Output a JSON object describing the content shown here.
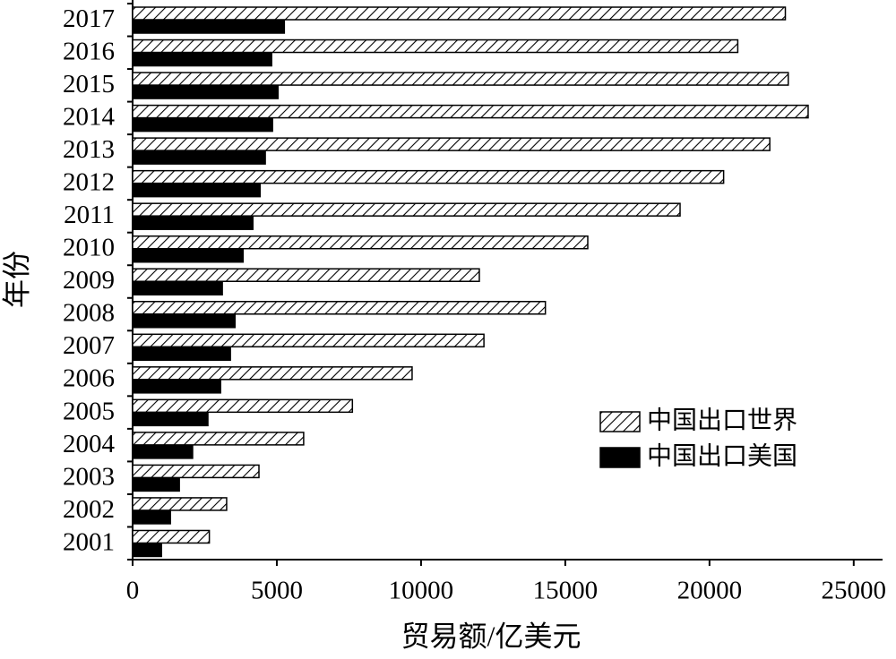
{
  "chart_data": {
    "type": "hbar",
    "x_label": "贸易额/亿美元",
    "y_label": "年份",
    "categories": [
      "2001",
      "2002",
      "2003",
      "2004",
      "2005",
      "2006",
      "2007",
      "2008",
      "2009",
      "2010",
      "2011",
      "2012",
      "2013",
      "2014",
      "2015",
      "2016",
      "2017"
    ],
    "series": [
      {
        "name": "中国出口世界",
        "color": "#000000",
        "pattern": "hatch",
        "values": [
          2660,
          3260,
          4380,
          5930,
          7620,
          9690,
          12180,
          14310,
          12020,
          15780,
          18980,
          20490,
          22090,
          23420,
          22730,
          20980,
          22630
        ]
      },
      {
        "name": "中国出口美国",
        "color": "#000000",
        "pattern": "solid",
        "values": [
          1000,
          1310,
          1620,
          2080,
          2610,
          3050,
          3390,
          3550,
          3110,
          3830,
          4170,
          4420,
          4600,
          4850,
          5040,
          4820,
          5260
        ]
      }
    ],
    "xlim": [
      0,
      26000
    ],
    "xticks": [
      0,
      5000,
      10000,
      15000,
      20000,
      25000
    ],
    "grid": false,
    "legend": "lower right"
  }
}
